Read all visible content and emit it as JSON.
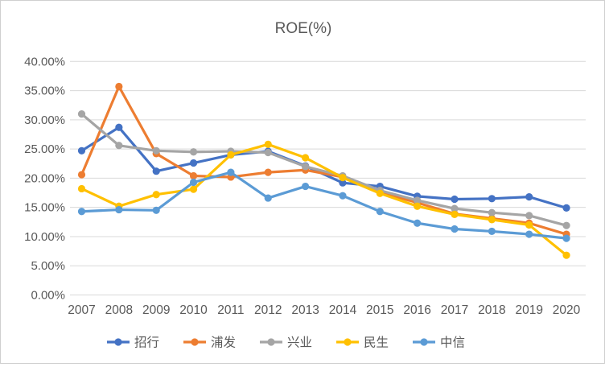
{
  "title": "ROE(%)",
  "chart_data": {
    "type": "line",
    "title": "ROE(%)",
    "marker": "circle",
    "grid": true,
    "legend_position": "bottom",
    "axis_color": "#595959",
    "grid_color": "#d9d9d9",
    "ylim": [
      0,
      40
    ],
    "y_tick_step": 5,
    "y_ticks": [
      {
        "value": 40,
        "label": "40.00%"
      },
      {
        "value": 35,
        "label": "35.00%"
      },
      {
        "value": 30,
        "label": "30.00%"
      },
      {
        "value": 25,
        "label": "25.00%"
      },
      {
        "value": 20,
        "label": "20.00%"
      },
      {
        "value": 15,
        "label": "15.00%"
      },
      {
        "value": 10,
        "label": "10.00%"
      },
      {
        "value": 5,
        "label": "5.00%"
      },
      {
        "value": 0,
        "label": "0.00%"
      }
    ],
    "categories": [
      "2007",
      "2008",
      "2009",
      "2010",
      "2011",
      "2012",
      "2013",
      "2014",
      "2015",
      "2016",
      "2017",
      "2018",
      "2019",
      "2020"
    ],
    "series": [
      {
        "key": "zhaohang",
        "name": "招行",
        "color": "#4472C4",
        "values": [
          24.7,
          28.7,
          21.2,
          22.6,
          24.0,
          24.6,
          22.1,
          19.2,
          18.6,
          16.9,
          16.4,
          16.5,
          16.8,
          14.9
        ]
      },
      {
        "key": "pufa",
        "name": "浦发",
        "color": "#ED7D31",
        "values": [
          20.6,
          35.7,
          24.2,
          20.4,
          20.2,
          21.0,
          21.4,
          20.2,
          17.6,
          15.8,
          13.9,
          13.1,
          12.3,
          10.4
        ]
      },
      {
        "key": "xingye",
        "name": "兴业",
        "color": "#A5A5A5",
        "values": [
          31.0,
          25.6,
          24.7,
          24.5,
          24.6,
          24.4,
          22.0,
          20.4,
          17.9,
          16.2,
          14.8,
          14.1,
          13.6,
          11.9
        ]
      },
      {
        "key": "minsheng",
        "name": "民生",
        "color": "#FFC000",
        "values": [
          18.2,
          15.2,
          17.2,
          18.1,
          24.0,
          25.8,
          23.5,
          20.1,
          17.4,
          15.2,
          13.8,
          12.9,
          12.0,
          6.8
        ]
      },
      {
        "key": "zhongxin",
        "name": "中信",
        "color": "#5B9BD5",
        "values": [
          14.3,
          14.6,
          14.5,
          19.3,
          21.0,
          16.6,
          18.6,
          17.0,
          14.3,
          12.3,
          11.3,
          10.9,
          10.4,
          9.7
        ]
      }
    ]
  }
}
